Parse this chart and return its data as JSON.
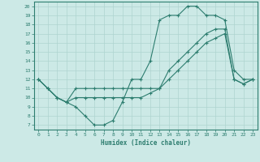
{
  "title": "",
  "xlabel": "Humidex (Indice chaleur)",
  "xlim": [
    -0.5,
    23.5
  ],
  "ylim": [
    6.5,
    20.5
  ],
  "xticks": [
    0,
    1,
    2,
    3,
    4,
    5,
    6,
    7,
    8,
    9,
    10,
    11,
    12,
    13,
    14,
    15,
    16,
    17,
    18,
    19,
    20,
    21,
    22,
    23
  ],
  "yticks": [
    7,
    8,
    9,
    10,
    11,
    12,
    13,
    14,
    15,
    16,
    17,
    18,
    19,
    20
  ],
  "line_color": "#2d7d6f",
  "bg_color": "#cce9e6",
  "grid_color": "#aed4d0",
  "line1_y": [
    12,
    11,
    10,
    9.5,
    9,
    8,
    7,
    7,
    7.5,
    9.5,
    12,
    12,
    14,
    18.5,
    19,
    19,
    20,
    20,
    19,
    19,
    18.5,
    13,
    12,
    12
  ],
  "line2_y": [
    12,
    11,
    10,
    9.5,
    11,
    11,
    11,
    11,
    11,
    11,
    11,
    11,
    11,
    11,
    13,
    14,
    15,
    16,
    17,
    17.5,
    17.5,
    12,
    11.5,
    12
  ],
  "line3_y": [
    12,
    11,
    10,
    9.5,
    10,
    10,
    10,
    10,
    10,
    10,
    10,
    10,
    10.5,
    11,
    12,
    13,
    14,
    15,
    16,
    16.5,
    17,
    12,
    11.5,
    12
  ]
}
